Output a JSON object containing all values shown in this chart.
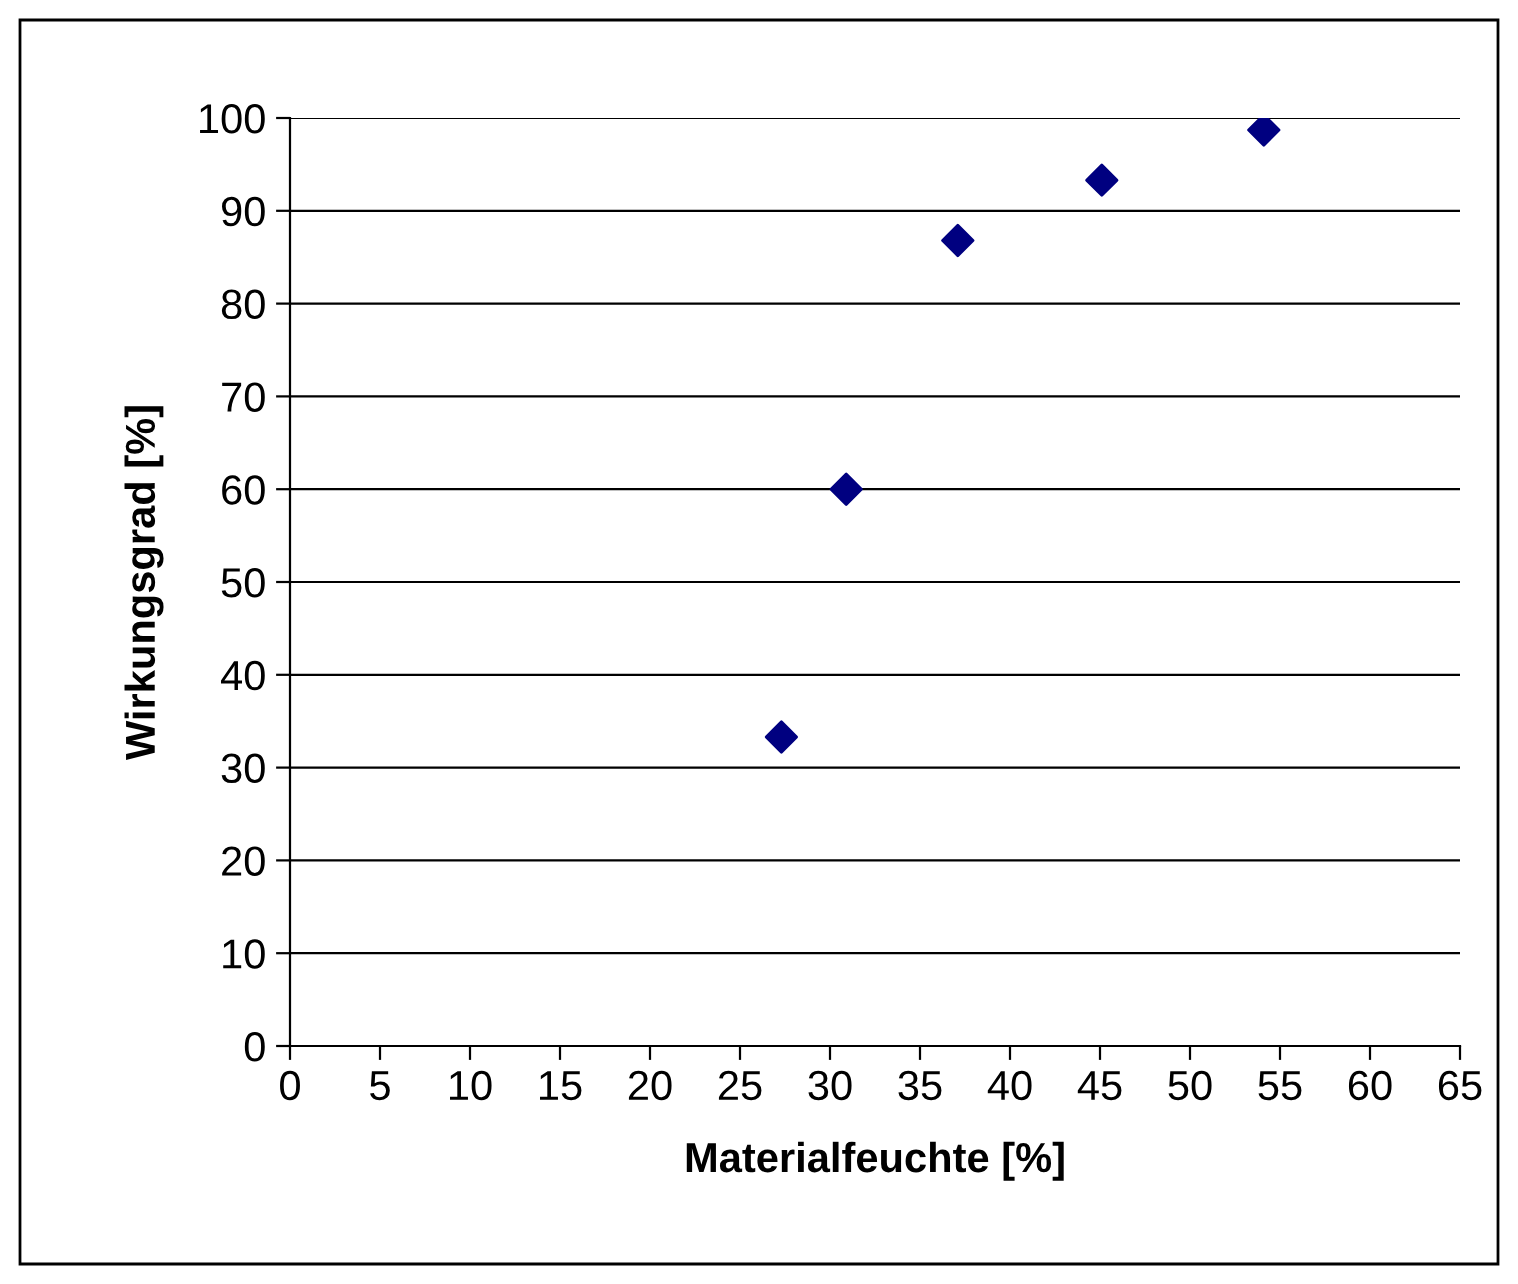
{
  "chart_data": {
    "type": "scatter",
    "xlabel": "Materialfeuchte [%]",
    "ylabel": "Wirkungsgrad [%]",
    "x": [
      27.3,
      30.9,
      37.1,
      45.1,
      54.1
    ],
    "values": [
      33.3,
      60,
      86.8,
      93.3,
      98.7
    ],
    "color": "#000080",
    "marker": "diamond",
    "xlim": [
      0,
      65
    ],
    "xticks": [
      0,
      5,
      10,
      15,
      20,
      25,
      30,
      35,
      40,
      45,
      50,
      55,
      60,
      65
    ],
    "ylim": [
      0,
      100
    ],
    "yticks": [
      0,
      10,
      20,
      30,
      40,
      50,
      60,
      70,
      80,
      90,
      100
    ],
    "grid": "y",
    "legend": false
  }
}
